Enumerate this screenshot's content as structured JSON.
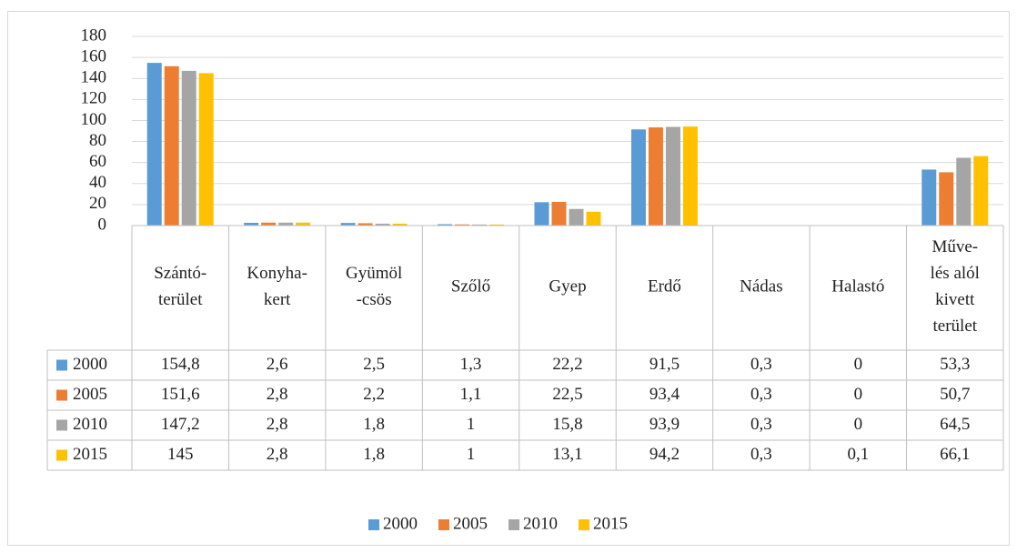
{
  "chart_data": {
    "type": "bar",
    "categories": [
      [
        "Szántó-",
        "terület"
      ],
      [
        "Konyha-",
        "kert"
      ],
      [
        "Gyümöl",
        "-csös"
      ],
      [
        "Szőlő"
      ],
      [
        "Gyep"
      ],
      [
        "Erdő"
      ],
      [
        "Nádas"
      ],
      [
        "Halastó"
      ],
      [
        "Műve-",
        "lés alól",
        "kivett",
        "terület"
      ]
    ],
    "series": [
      {
        "name": "2000",
        "color": "#5b9bd5",
        "values": [
          154.8,
          2.6,
          2.5,
          1.3,
          22.2,
          91.5,
          0.3,
          0,
          53.3
        ],
        "value_labels": [
          "154,8",
          "2,6",
          "2,5",
          "1,3",
          "22,2",
          "91,5",
          "0,3",
          "0",
          "53,3"
        ]
      },
      {
        "name": "2005",
        "color": "#ed7d31",
        "values": [
          151.6,
          2.8,
          2.2,
          1.1,
          22.5,
          93.4,
          0.3,
          0,
          50.7
        ],
        "value_labels": [
          "151,6",
          "2,8",
          "2,2",
          "1,1",
          "22,5",
          "93,4",
          "0,3",
          "0",
          "50,7"
        ]
      },
      {
        "name": "2010",
        "color": "#a5a5a5",
        "values": [
          147.2,
          2.8,
          1.8,
          1,
          15.8,
          93.9,
          0.3,
          0,
          64.5
        ],
        "value_labels": [
          "147,2",
          "2,8",
          "1,8",
          "1",
          "15,8",
          "93,9",
          "0,3",
          "0",
          "64,5"
        ]
      },
      {
        "name": "2015",
        "color": "#ffc000",
        "values": [
          145,
          2.8,
          1.8,
          1,
          13.1,
          94.2,
          0.3,
          0.1,
          66.1
        ],
        "value_labels": [
          "145",
          "2,8",
          "1,8",
          "1",
          "13,1",
          "94,2",
          "0,3",
          "0,1",
          "66,1"
        ]
      }
    ],
    "ylim": [
      0,
      180
    ],
    "yticks": [
      0,
      20,
      40,
      60,
      80,
      100,
      120,
      140,
      160,
      180
    ],
    "grid": true,
    "legend": "bottom"
  }
}
